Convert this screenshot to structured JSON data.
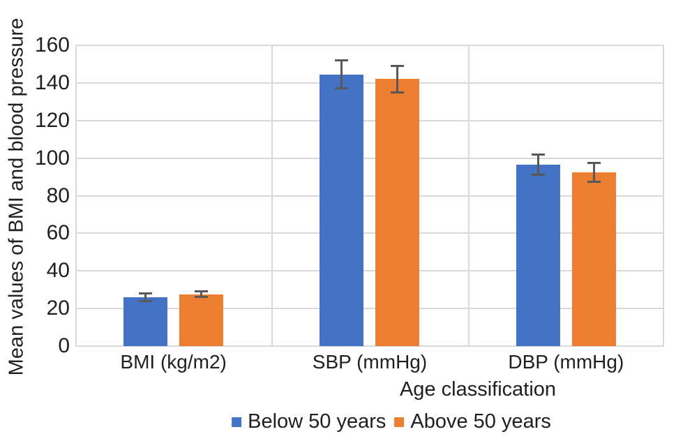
{
  "chart_data": {
    "type": "bar",
    "title": "",
    "ylabel": "Mean values of BMI and blood pressure",
    "xlabel": "Age classification",
    "categories": [
      "BMI (kg/m2)",
      "SBP (mmHg)",
      "DBP (mmHg)"
    ],
    "series": [
      {
        "name": "Below 50 years",
        "color": "#4472C4",
        "values": [
          26,
          144.5,
          96.5
        ],
        "errors": [
          2,
          7.5,
          5.5
        ]
      },
      {
        "name": "Above 50 years",
        "color": "#ED7D31",
        "values": [
          27.5,
          142,
          92.5
        ],
        "errors": [
          1.5,
          7,
          5
        ]
      }
    ],
    "ylim": [
      0,
      160
    ],
    "yticks": [
      0,
      20,
      40,
      60,
      80,
      100,
      120,
      140,
      160
    ],
    "grid": true,
    "legend_position": "bottom",
    "error_bars": true,
    "colors": {
      "gridline": "#d9d9d9",
      "error_bar": "#595959",
      "text": "#1f1f1f",
      "background": "#ffffff"
    }
  }
}
